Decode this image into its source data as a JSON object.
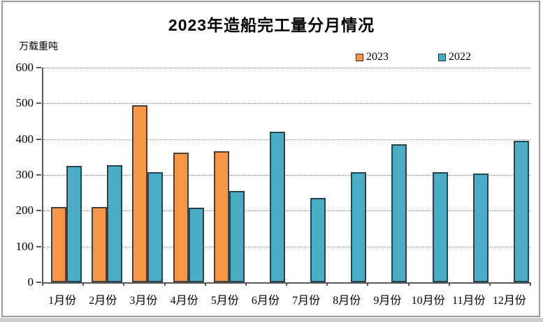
{
  "page": {
    "background": "#ffffff",
    "frame_border_color": "#9a9a9a",
    "outer_strip_color": "#cbced1"
  },
  "chart_data": {
    "type": "bar",
    "title": "2023年造船完工量分月情况",
    "unit_label": "万载重吨",
    "categories": [
      "1月份",
      "2月份",
      "3月份",
      "4月份",
      "5月份",
      "6月份",
      "7月份",
      "8月份",
      "9月份",
      "10月份",
      "11月份",
      "12月份"
    ],
    "series": [
      {
        "name": "2023",
        "color": "#F79646",
        "border_color": "#4a4038",
        "values": [
          211,
          211,
          494,
          362,
          367,
          null,
          null,
          null,
          null,
          null,
          null,
          null
        ]
      },
      {
        "name": "2022",
        "color": "#4BACC6",
        "border_color": "#27444f",
        "values": [
          325,
          327,
          307,
          209,
          256,
          421,
          235,
          308,
          385,
          307,
          303,
          395
        ]
      }
    ],
    "ylim": [
      0,
      600
    ],
    "ytick_step": 100,
    "ytick_labels": [
      "0",
      "100",
      "200",
      "300",
      "400",
      "500",
      "600"
    ],
    "grid": "horizontal-dotted",
    "grid_color": "#8f8f8f",
    "axis_color": "#595959",
    "legend_position": "top-right"
  }
}
